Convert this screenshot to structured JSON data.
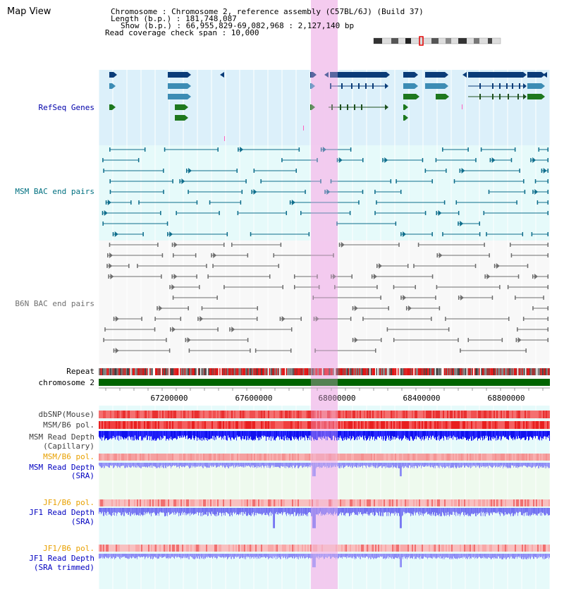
{
  "header": {
    "title": "Map View",
    "info_lines": [
      "Chromosome    : Chromosome 2, reference assembly (C57BL/6J) (Build 37)",
      "Length (b.p.) : 181,748,087",
      "Show (b.p.) : 66,955,829-69,082,968 : 2,127,140 bp",
      "Read coverage check span : 10,000"
    ]
  },
  "tracks": {
    "refseq": "RefSeq Genes",
    "msm_bac": "MSM BAC end pairs",
    "b6n_bac": "B6N BAC end pairs",
    "repeat": "Repeat",
    "chromosome": "chromosome 2",
    "dbsnp": "dbSNP(Mouse)",
    "msm_b6_pol_1": "MSM/B6 pol.",
    "msm_read_depth_cap_1": "MSM Read Depth",
    "msm_read_depth_cap_2": "(Capillary)",
    "msm_b6_pol_2": "MSM/B6 pol.",
    "msm_read_depth_sra_1": "MSM Read Depth",
    "msm_read_depth_sra_2": "(SRA)",
    "jf1_b6_pol_1": "JF1/B6 pol.",
    "jf1_read_depth_sra_1": "JF1 Read Depth",
    "jf1_read_depth_sra_2": "(SRA)",
    "jf1_b6_pol_2": "JF1/B6 pol.",
    "jf1_read_depth_trim_1": "JF1 Read Depth",
    "jf1_read_depth_trim_2": "(SRA trimmed)"
  },
  "axis_ticks": [
    "67200000",
    "67600000",
    "68000000",
    "68400000",
    "68800000"
  ],
  "colors": {
    "refseq_bg": "#dcf0fa",
    "msm_bg": "#e6fafa",
    "b6n_bg": "#f8f8f8",
    "highlight": "#f5d2f0",
    "refseq_label": "#0000aa",
    "msm_label": "#007080",
    "b6n_label": "#707070",
    "orange_label": "#e8a000",
    "blue_label": "#0000c0",
    "chromosome_bar": "#006400"
  }
}
